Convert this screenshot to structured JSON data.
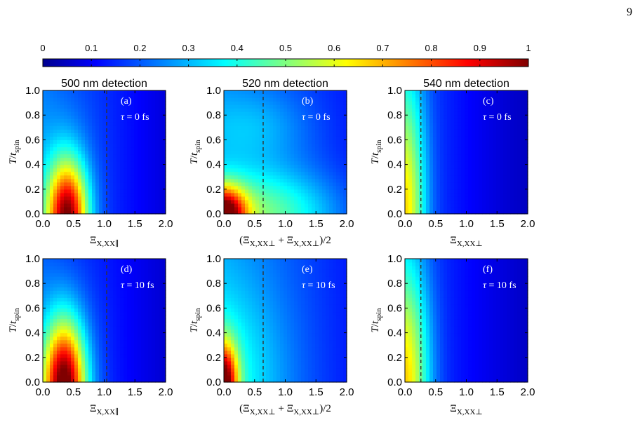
{
  "page_number": "9",
  "colorbar": {
    "ticks": [
      "0",
      "0.1",
      "0.2",
      "0.3",
      "0.4",
      "0.5",
      "0.6",
      "0.7",
      "0.8",
      "0.9",
      "1"
    ],
    "range": [
      0,
      1
    ]
  },
  "chart_data": [
    {
      "type": "heatmap",
      "title": "500 nm detection",
      "panel_label": "(a)",
      "tau_main": "τ",
      "tau_value": " = 0 fs",
      "ylabel_main": "T",
      "ylabel_sub": "spin",
      "xlabel_main": "Ξ",
      "xlabel_sub": "X,XX∥",
      "xlim": [
        0,
        2
      ],
      "ylim": [
        0,
        1
      ],
      "xticks": [
        "0.0",
        "0.5",
        "1.0",
        "1.5",
        "2.0"
      ],
      "yticks": [
        "0.0",
        "0.2",
        "0.4",
        "0.6",
        "0.8",
        "1.0"
      ],
      "dashed_x": 1.04,
      "peak": {
        "x": 0.4,
        "y": 0.0,
        "value": 0.94
      }
    },
    {
      "type": "heatmap",
      "title": "520 nm detection",
      "panel_label": "(b)",
      "tau_main": "τ",
      "tau_value": " = 0 fs",
      "ylabel_main": "T",
      "ylabel_sub": "spin",
      "xlabel_main": "(Ξ",
      "xlabel_sub1": "X,XX⊥",
      "xlabel_mid": " + Ξ",
      "xlabel_sub2": "X,XX⊥",
      "xlabel_end": ")/2",
      "xlim": [
        0,
        2
      ],
      "ylim": [
        0,
        1
      ],
      "xticks": [
        "0.0",
        "0.5",
        "1.0",
        "1.5",
        "2.0"
      ],
      "yticks": [
        "0.0",
        "0.2",
        "0.4",
        "0.6",
        "0.8",
        "1.0"
      ],
      "dashed_x": 0.64,
      "peak": {
        "x": 0.0,
        "y": 0.0,
        "value": 0.93
      }
    },
    {
      "type": "heatmap",
      "title": "540 nm detection",
      "panel_label": "(c)",
      "tau_main": "τ",
      "tau_value": " = 0 fs",
      "ylabel_main": "T",
      "ylabel_sub": "spin",
      "xlabel_main": "Ξ",
      "xlabel_sub": "X,XX⊥",
      "xlim": [
        0,
        2
      ],
      "ylim": [
        0,
        1
      ],
      "xticks": [
        "0.0",
        "0.5",
        "1.0",
        "1.5",
        "2.0"
      ],
      "yticks": [
        "0.0",
        "0.2",
        "0.4",
        "0.6",
        "0.8",
        "1.0"
      ],
      "dashed_x": 0.26,
      "peak": {
        "x": 0.0,
        "y": 0.0,
        "value": 0.58
      }
    },
    {
      "type": "heatmap",
      "panel_label": "(d)",
      "tau_main": "τ",
      "tau_value": " = 10 fs",
      "ylabel_main": "T",
      "ylabel_sub": "spin",
      "xlabel_main": "Ξ",
      "xlabel_sub": "X,XX∥",
      "xlim": [
        0,
        2
      ],
      "ylim": [
        0,
        1
      ],
      "xticks": [
        "0.0",
        "0.5",
        "1.0",
        "1.5",
        "2.0"
      ],
      "yticks": [
        "0.0",
        "0.2",
        "0.4",
        "0.6",
        "0.8",
        "1.0"
      ],
      "dashed_x": 1.04,
      "peak": {
        "x": 0.35,
        "y": 0.0,
        "value": 0.97
      }
    },
    {
      "type": "heatmap",
      "panel_label": "(e)",
      "tau_main": "τ",
      "tau_value": " = 10 fs",
      "ylabel_main": "T",
      "ylabel_sub": "spin",
      "xlabel_main": "(Ξ",
      "xlabel_sub1": "X,XX⊥",
      "xlabel_mid": " + Ξ",
      "xlabel_sub2": "X,XX⊥",
      "xlabel_end": ")/2",
      "xlim": [
        0,
        2
      ],
      "ylim": [
        0,
        1
      ],
      "xticks": [
        "0.0",
        "0.5",
        "1.0",
        "1.5",
        "2.0"
      ],
      "yticks": [
        "0.0",
        "0.2",
        "0.4",
        "0.6",
        "0.8",
        "1.0"
      ],
      "dashed_x": 0.64,
      "peak": {
        "x": 0.0,
        "y": 0.0,
        "value": 0.95
      }
    },
    {
      "type": "heatmap",
      "panel_label": "(f)",
      "tau_main": "τ",
      "tau_value": " = 10 fs",
      "ylabel_main": "T",
      "ylabel_sub": "spin",
      "xlabel_main": "Ξ",
      "xlabel_sub": "X,XX⊥",
      "xlim": [
        0,
        2
      ],
      "ylim": [
        0,
        1
      ],
      "xticks": [
        "0.0",
        "0.5",
        "1.0",
        "1.5",
        "2.0"
      ],
      "yticks": [
        "0.0",
        "0.2",
        "0.4",
        "0.6",
        "0.8",
        "1.0"
      ],
      "dashed_x": 0.26,
      "peak": {
        "x": 0.0,
        "y": 0.0,
        "value": 0.6
      }
    }
  ]
}
